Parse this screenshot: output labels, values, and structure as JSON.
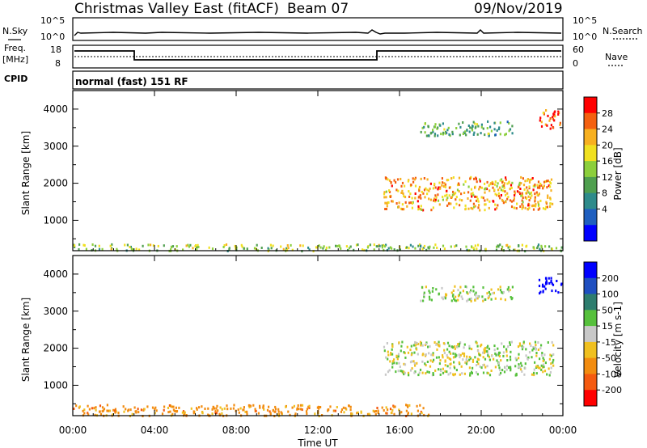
{
  "header": {
    "title": "Christmas Valley East (fitACF)",
    "beam": "Beam 07",
    "date": "09/Nov/2019"
  },
  "panels": {
    "nsky": {
      "left_label": "N.Sky",
      "right_label": "N.Search",
      "ticks_left": [
        "10^5",
        "10^0"
      ],
      "ticks_right": [
        "10^5",
        "10^0"
      ]
    },
    "freq": {
      "left_label_1": "Freq.",
      "left_label_2": "[MHz]",
      "right_label": "Nave",
      "ticks_left": [
        "18",
        "8"
      ],
      "ticks_right": [
        "60",
        "0"
      ]
    },
    "cpid": {
      "label": "CPID",
      "text": "normal (fast) 151 RF"
    }
  },
  "chart_data": [
    {
      "type": "heatmap",
      "panel": "power",
      "ylabel": "Slant Range [km]",
      "xlabel": "Time UT",
      "x_ticks": [
        "00:00",
        "04:00",
        "08:00",
        "12:00",
        "16:00",
        "20:00",
        "00:00"
      ],
      "y_ticks": [
        1000,
        2000,
        3000,
        4000
      ],
      "ylim": [
        180,
        4500
      ],
      "xlim_hours": [
        0,
        24
      ],
      "colorbar": {
        "label": "Power [dB]",
        "ticks": [
          "28",
          "24",
          "20",
          "16",
          "12",
          "8",
          "4"
        ],
        "colors": [
          "#0000ff",
          "#1f5fbf",
          "#2e8b8b",
          "#4f9f4f",
          "#8ccf3c",
          "#f0e020",
          "#f7b020",
          "#f46010",
          "#ff0000"
        ]
      },
      "features": [
        {
          "name": "near-range band",
          "t_start": 0,
          "t_end": 24,
          "range_km": [
            200,
            380
          ],
          "power_db": 16
        },
        {
          "name": "main F band",
          "t_start": 15.2,
          "t_end": 23.5,
          "range_km": [
            1300,
            2200
          ],
          "power_db": 24
        },
        {
          "name": "upper band",
          "t_start": 17,
          "t_end": 21.5,
          "range_km": [
            3300,
            3700
          ],
          "power_db": 12
        },
        {
          "name": "far echo",
          "t_start": 22.8,
          "t_end": 23.9,
          "range_km": [
            3500,
            4000
          ],
          "power_db": 28
        }
      ]
    },
    {
      "type": "heatmap",
      "panel": "velocity",
      "ylabel": "Slant Range [km]",
      "xlabel": "Time UT",
      "x_ticks": [
        "00:00",
        "04:00",
        "08:00",
        "12:00",
        "16:00",
        "20:00",
        "00:00"
      ],
      "y_ticks": [
        1000,
        2000,
        3000,
        4000
      ],
      "ylim": [
        180,
        4500
      ],
      "xlim_hours": [
        0,
        24
      ],
      "colorbar": {
        "label": "Velocity [m s-1]",
        "ticks": [
          "200",
          "100",
          "50",
          "15",
          "-15",
          "-50",
          "-100",
          "-200"
        ],
        "colors": [
          "#0000ff",
          "#1f4fc0",
          "#2e7d6e",
          "#56c03c",
          "#c8c8c8",
          "#f0c020",
          "#f28c10",
          "#f45a10",
          "#ff0000"
        ]
      },
      "features": [
        {
          "name": "near-range band",
          "t_start": 0,
          "t_end": 17.5,
          "range_km": [
            200,
            500
          ],
          "velocity": -50
        },
        {
          "name": "main F band",
          "t_start": 15.2,
          "t_end": 23.5,
          "range_km": [
            1300,
            2200
          ],
          "velocity": 0
        },
        {
          "name": "upper band",
          "t_start": 17,
          "t_end": 21.5,
          "range_km": [
            3300,
            3700
          ],
          "velocity": 0
        },
        {
          "name": "far echo",
          "t_start": 22.8,
          "t_end": 23.9,
          "range_km": [
            3500,
            4000
          ],
          "velocity": 200
        }
      ]
    }
  ]
}
